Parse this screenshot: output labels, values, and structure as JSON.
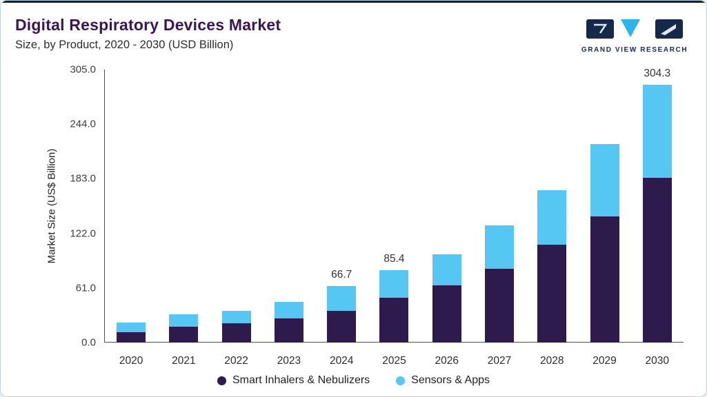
{
  "header": {
    "title": "Digital Respiratory Devices Market",
    "subtitle": "Size, by Product, 2020 - 2030 (USD Billion)"
  },
  "logo": {
    "text": "GRAND VIEW RESEARCH",
    "icon": "grand-view-research-logo-icon",
    "navy": "#16294b",
    "cyan": "#2ab6e8"
  },
  "chart_data": {
    "type": "bar",
    "stacked": true,
    "title": "Digital Respiratory Devices Market Size, by Product, 2020 - 2030 (USD Billion)",
    "ylabel": "Market Size (US$ Billion)",
    "xlabel": "",
    "categories": [
      "2020",
      "2021",
      "2022",
      "2023",
      "2024",
      "2025",
      "2026",
      "2027",
      "2028",
      "2029",
      "2030"
    ],
    "series": [
      {
        "key": "smart-inhalers-nebulizers",
        "name": "Smart Inhalers & Nebulizers",
        "color": "#2d1b4e",
        "values": [
          12.2,
          18.7,
          22.8,
          28.5,
          37.1,
          52.9,
          67.5,
          87.1,
          115.5,
          148.9,
          194.4
        ]
      },
      {
        "key": "sensors-apps",
        "name": "Sensors & Apps",
        "color": "#56c6f2",
        "values": [
          11.4,
          14.7,
          14.6,
          19.5,
          29.6,
          32.5,
          36.6,
          51.2,
          64.3,
          85.4,
          109.9
        ]
      }
    ],
    "totals": [
      23.6,
      33.4,
      37.4,
      48.0,
      66.7,
      85.4,
      104.1,
      138.3,
      179.8,
      234.3,
      304.3
    ],
    "bar_labels": [
      "",
      "",
      "",
      "",
      "66.7",
      "85.4",
      "",
      "",
      "",
      "",
      "304.3"
    ],
    "yticks": [
      {
        "value": 0,
        "label": "0.0"
      },
      {
        "value": 61,
        "label": "61.0"
      },
      {
        "value": 122,
        "label": "122.0"
      },
      {
        "value": 183,
        "label": "183.0"
      },
      {
        "value": 244,
        "label": "244.0"
      },
      {
        "value": 305,
        "label": "305.0"
      }
    ],
    "ylim": [
      0,
      305
    ],
    "grid": false,
    "legend_position": "bottom"
  }
}
